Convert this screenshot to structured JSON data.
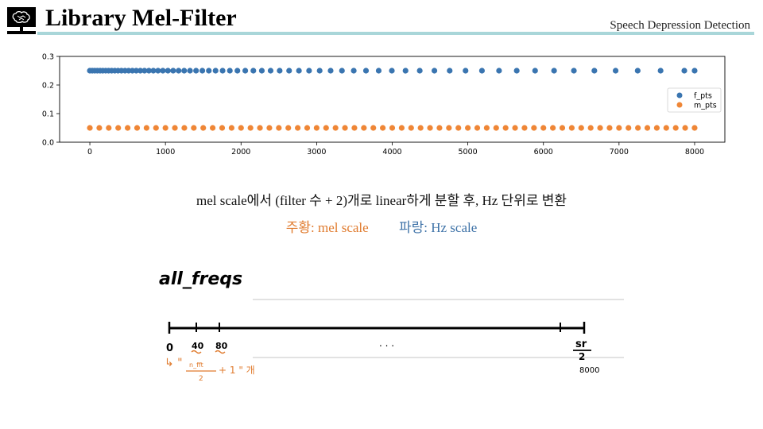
{
  "header": {
    "title": "Library Mel-Filter",
    "subtitle": "Speech Depression Detection"
  },
  "chart_data": {
    "type": "scatter",
    "xlim": [
      -400,
      8400
    ],
    "ylim": [
      0.0,
      0.3
    ],
    "xticks": [
      0,
      1000,
      2000,
      3000,
      4000,
      5000,
      6000,
      7000,
      8000
    ],
    "yticks": [
      "0.0",
      "0.1",
      "0.2",
      "0.3"
    ],
    "grid": false,
    "legend_position": "right",
    "series": [
      {
        "name": "f_pts",
        "color": "#3a75b0",
        "y": 0.25,
        "x": [
          0,
          32,
          65,
          99,
          135,
          171,
          209,
          248,
          288,
          330,
          373,
          418,
          465,
          513,
          563,
          614,
          668,
          723,
          781,
          840,
          902,
          966,
          1033,
          1102,
          1174,
          1248,
          1325,
          1405,
          1488,
          1574,
          1663,
          1756,
          1852,
          1952,
          2056,
          2163,
          2275,
          2391,
          2511,
          2636,
          2766,
          2900,
          3040,
          3185,
          3335,
          3491,
          3653,
          3821,
          3995,
          4176,
          4364,
          4558,
          4760,
          4970,
          5187,
          5413,
          5647,
          5890,
          6141,
          6403,
          6674,
          6955,
          7247,
          7550,
          7864,
          8000
        ]
      },
      {
        "name": "m_pts",
        "color": "#ef8636",
        "y": 0.05,
        "x": [
          0,
          125,
          250,
          375,
          500,
          625,
          750,
          875,
          1000,
          1125,
          1250,
          1375,
          1500,
          1625,
          1750,
          1875,
          2000,
          2125,
          2250,
          2375,
          2500,
          2625,
          2750,
          2875,
          3000,
          3125,
          3250,
          3375,
          3500,
          3625,
          3750,
          3875,
          4000,
          4125,
          4250,
          4375,
          4500,
          4625,
          4750,
          4875,
          5000,
          5125,
          5250,
          5375,
          5500,
          5625,
          5750,
          5875,
          6000,
          6125,
          6250,
          6375,
          6500,
          6625,
          6750,
          6875,
          7000,
          7125,
          7250,
          7375,
          7500,
          7625,
          7750,
          7875,
          8000
        ]
      }
    ]
  },
  "captions": {
    "line1": "mel scale에서 (filter 수 + 2)개로 linear하게 분할 후, Hz 단위로 변환",
    "mel_label": "주황: mel scale",
    "hz_label": "파랑: Hz scale"
  },
  "sketch": {
    "title": "all_freqs",
    "tick_0": "0",
    "tick_40": "40",
    "tick_80": "80",
    "ellipsis": ". . .",
    "sr": "sr",
    "half_denom": "2",
    "sr_value": "8000",
    "note_fraction_top": "n_fft",
    "note_fraction_bottom": "2",
    "note_rest": "+ 1 \" 개",
    "note_arrow": "↳ \""
  },
  "colors": {
    "accent_rule": "#a9d6d9",
    "orange": "#e07b2e",
    "blue": "#3f73a8"
  }
}
